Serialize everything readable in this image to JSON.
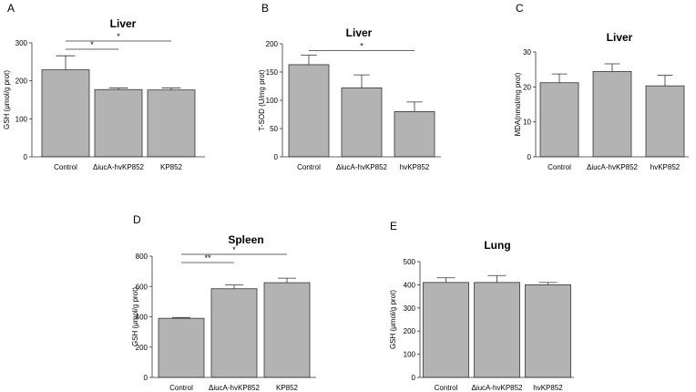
{
  "chart_data": [
    {
      "panel_label": "A",
      "type": "bar",
      "title": "Liver",
      "ylabel": "GSH (μmol/g prot)",
      "categories": [
        "Control",
        "ΔiucA-hvKP852",
        "KP852"
      ],
      "values": [
        229,
        177,
        176
      ],
      "errors": [
        37,
        4,
        5
      ],
      "ylim": [
        0,
        300
      ],
      "yticks": [
        "0",
        "100",
        "200",
        "300"
      ],
      "significance": [
        {
          "from": 0,
          "to": 1,
          "label": "*"
        },
        {
          "from": 0,
          "to": 2,
          "label": "*"
        }
      ],
      "bar_color": "#b3b3b3"
    },
    {
      "panel_label": "B",
      "type": "bar",
      "title": "Liver",
      "ylabel": "T-SOD (U/mg prot)",
      "categories": [
        "Control",
        "ΔiucA-hvKP852",
        "hvKP852"
      ],
      "values": [
        163,
        122,
        80
      ],
      "errors": [
        17,
        23,
        17
      ],
      "ylim": [
        0,
        200
      ],
      "yticks": [
        "0",
        "50",
        "100",
        "150",
        "200"
      ],
      "significance": [
        {
          "from": 0,
          "to": 2,
          "label": "*"
        }
      ],
      "bar_color": "#b3b3b3"
    },
    {
      "panel_label": "C",
      "type": "bar",
      "title": "Liver",
      "ylabel": "MDA(nmol/mg prot)",
      "categories": [
        "Control",
        "ΔiucA-hvKP852",
        "hvKP852"
      ],
      "values": [
        21.2,
        24.4,
        20.3
      ],
      "errors": [
        2.5,
        2.2,
        3.0
      ],
      "ylim": [
        0,
        30
      ],
      "yticks": [
        "0",
        "10",
        "20",
        "30"
      ],
      "significance": [],
      "bar_color": "#b3b3b3"
    },
    {
      "panel_label": "D",
      "type": "bar",
      "title": "Spleen",
      "ylabel": "GSH (μmol/g prot)",
      "categories": [
        "Control",
        "ΔiucA-hvKP852",
        "KP852"
      ],
      "values": [
        390,
        585,
        625
      ],
      "errors": [
        5,
        25,
        30
      ],
      "ylim": [
        0,
        800
      ],
      "yticks": [
        "0",
        "200",
        "400",
        "600",
        "800"
      ],
      "significance": [
        {
          "from": 0,
          "to": 1,
          "label": "**"
        },
        {
          "from": 0,
          "to": 2,
          "label": "*"
        }
      ],
      "bar_color": "#b3b3b3"
    },
    {
      "panel_label": "E",
      "type": "bar",
      "title": "Lung",
      "ylabel": "GSH (μmol/g prot)",
      "categories": [
        "Control",
        "ΔiucA-hvKP852",
        "hvKP852"
      ],
      "values": [
        410,
        410,
        400
      ],
      "errors": [
        20,
        30,
        10
      ],
      "ylim": [
        0,
        500
      ],
      "yticks": [
        "0",
        "100",
        "200",
        "300",
        "400",
        "500"
      ],
      "significance": [],
      "bar_color": "#b3b3b3"
    }
  ]
}
